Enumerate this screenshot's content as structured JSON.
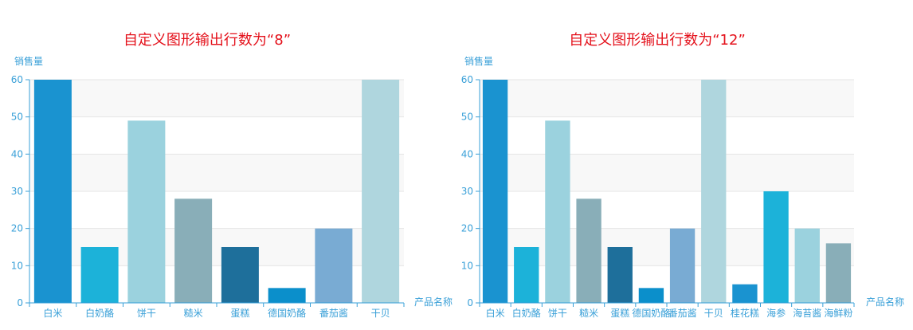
{
  "chart_data": [
    {
      "type": "bar",
      "title": "自定义图形输出行数为“8”",
      "ylabel": "销售量",
      "xlabel": "产品名称",
      "ylim": [
        0,
        60
      ],
      "yticks": [
        0,
        10,
        20,
        30,
        40,
        50,
        60
      ],
      "categories": [
        "白米",
        "白奶酪",
        "饼干",
        "糙米",
        "蛋糕",
        "德国奶酪",
        "番茄酱",
        "干贝"
      ],
      "values": [
        60,
        15,
        49,
        28,
        15,
        4,
        20,
        60
      ],
      "colors": [
        "#1a93d0",
        "#1cb2d9",
        "#9bd2de",
        "#89aeb8",
        "#1e6f9b",
        "#0b8fcb",
        "#79abd3",
        "#afd6de"
      ],
      "grid": true,
      "legend": "none"
    },
    {
      "type": "bar",
      "title": "自定义图形输出行数为“12”",
      "ylabel": "销售量",
      "xlabel": "产品名称",
      "ylim": [
        0,
        60
      ],
      "yticks": [
        0,
        10,
        20,
        30,
        40,
        50,
        60
      ],
      "categories": [
        "白米",
        "白奶酪",
        "饼干",
        "糙米",
        "蛋糕",
        "德国奶酪",
        "番茄酱",
        "干贝",
        "桂花糕",
        "海参",
        "海苔酱",
        "海鲜粉"
      ],
      "values": [
        60,
        15,
        49,
        28,
        15,
        4,
        20,
        60,
        5,
        30,
        20,
        16
      ],
      "colors": [
        "#1a93d0",
        "#1cb2d9",
        "#9bd2de",
        "#89aeb8",
        "#1e6f9b",
        "#0b8fcb",
        "#79abd3",
        "#afd6de",
        "#1a93d0",
        "#1cb2d9",
        "#9bd2de",
        "#89aeb8"
      ],
      "grid": true,
      "legend": "none"
    }
  ]
}
